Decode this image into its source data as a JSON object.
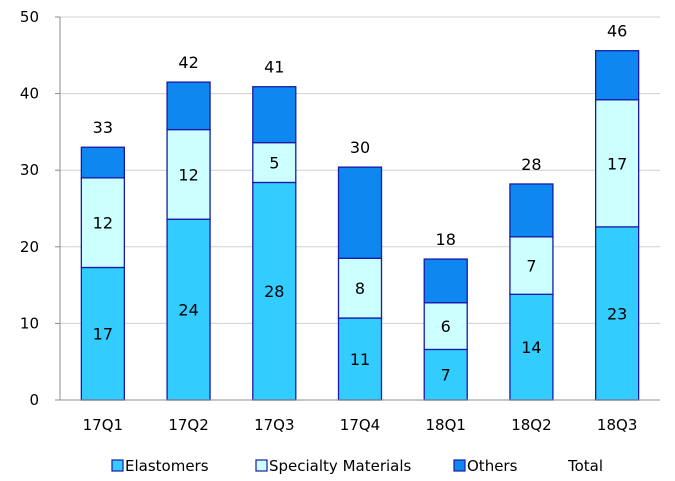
{
  "chart_data": {
    "type": "bar",
    "stacked": true,
    "categories": [
      "17Q1",
      "17Q2",
      "17Q3",
      "17Q4",
      "18Q1",
      "18Q2",
      "18Q3"
    ],
    "series": [
      {
        "name": "Elastomers",
        "values": [
          17.3,
          23.6,
          28.4,
          10.7,
          6.6,
          13.8,
          22.6
        ],
        "labels": [
          "17",
          "24",
          "28",
          "11",
          "7",
          "14",
          "23"
        ],
        "color": "#33ccff"
      },
      {
        "name": "Specialty Materials",
        "values": [
          11.7,
          11.7,
          5.2,
          7.8,
          6.1,
          7.5,
          16.6
        ],
        "labels": [
          "12",
          "12",
          "5",
          "8",
          "6",
          "7",
          "17"
        ],
        "color": "#ccffff"
      },
      {
        "name": "Others",
        "values": [
          4.0,
          6.2,
          7.3,
          11.9,
          5.7,
          6.9,
          6.4
        ],
        "labels": [
          "",
          "",
          "",
          "",
          "",
          "",
          ""
        ],
        "color": "#0f87f0"
      }
    ],
    "totals": {
      "name": "Total",
      "values": [
        33,
        42,
        41,
        30,
        18,
        28,
        46
      ]
    },
    "ylim": [
      0,
      50
    ],
    "yticks": [
      0,
      10,
      20,
      30,
      40,
      50
    ],
    "grid": true,
    "legend": "bottom",
    "colors": {
      "outline": "#1a1aa6",
      "grid": "#d0d0d0",
      "axis": "#8c8c8c"
    }
  }
}
